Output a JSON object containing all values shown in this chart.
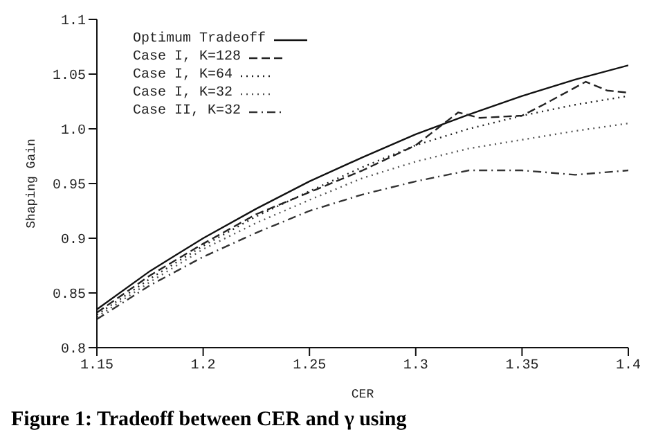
{
  "chart_data": {
    "type": "line",
    "xlabel": "CER",
    "ylabel": "Shaping Gain",
    "xlim": [
      1.15,
      1.4
    ],
    "xticks": [
      1.15,
      1.2,
      1.25,
      1.3,
      1.35,
      1.4
    ],
    "ylim": [
      0.8,
      1.1
    ],
    "yticks": [
      0.8,
      0.85,
      0.9,
      0.95,
      {
        "value": 1.0,
        "label": "1.0"
      },
      1.05,
      1.1
    ],
    "grid": false,
    "legend": "top left",
    "marker": "none",
    "series": [
      {
        "name": "Optimum Tradeoff",
        "color": "#111111",
        "line_style": "solid",
        "x": [
          1.15,
          1.175,
          1.2,
          1.225,
          1.25,
          1.275,
          1.3,
          1.325,
          1.35,
          1.375,
          1.4
        ],
        "values": [
          0.835,
          0.87,
          0.9,
          0.927,
          0.952,
          0.974,
          0.995,
          1.013,
          1.03,
          1.045,
          1.058
        ]
      },
      {
        "name": "Case I, K=128",
        "color": "#222222",
        "line_style": "dashed",
        "x": [
          1.15,
          1.175,
          1.2,
          1.225,
          1.25,
          1.275,
          1.3,
          1.31,
          1.32,
          1.33,
          1.35,
          1.36,
          1.38,
          1.39,
          1.4
        ],
        "values": [
          0.832,
          0.866,
          0.895,
          0.922,
          0.942,
          0.962,
          0.985,
          1.0,
          1.015,
          1.01,
          1.012,
          1.022,
          1.043,
          1.035,
          1.033
        ]
      },
      {
        "name": "Case I, K=64",
        "color": "#222222",
        "line_style": "dotted",
        "x": [
          1.15,
          1.175,
          1.2,
          1.225,
          1.25,
          1.275,
          1.3,
          1.325,
          1.35,
          1.375,
          1.4
        ],
        "values": [
          0.83,
          0.863,
          0.893,
          0.92,
          0.943,
          0.965,
          0.985,
          1.0,
          1.012,
          1.022,
          1.03
        ]
      },
      {
        "name": "Case I, K=32",
        "color": "#555555",
        "line_style": "dotted",
        "x": [
          1.15,
          1.175,
          1.2,
          1.225,
          1.25,
          1.275,
          1.3,
          1.325,
          1.35,
          1.375,
          1.4
        ],
        "values": [
          0.828,
          0.86,
          0.89,
          0.914,
          0.935,
          0.955,
          0.97,
          0.982,
          0.99,
          0.998,
          1.005
        ]
      },
      {
        "name": "Case II, K=32",
        "color": "#333333",
        "line_style": "dashdot",
        "x": [
          1.15,
          1.175,
          1.2,
          1.225,
          1.25,
          1.275,
          1.3,
          1.325,
          1.35,
          1.375,
          1.4
        ],
        "values": [
          0.826,
          0.857,
          0.883,
          0.905,
          0.925,
          0.94,
          0.952,
          0.962,
          0.962,
          0.958,
          0.962
        ]
      }
    ],
    "annotations": [
      "Figure 1:  Tradeoff between CER and γ using"
    ]
  }
}
